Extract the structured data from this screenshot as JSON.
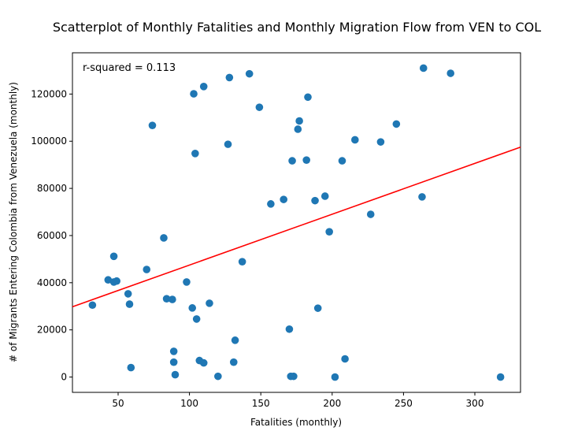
{
  "chart_data": {
    "type": "scatter",
    "title": "Scatterplot of Monthly Fatalities and Monthly Migration Flow from VEN to COL",
    "xlabel": "Fatalities (monthly)",
    "ylabel": "# of Migrants Entering Colombia from Venezuela (monthly)",
    "xlim": [
      18,
      332
    ],
    "ylim": [
      -6500,
      137500
    ],
    "xticks": [
      50,
      100,
      150,
      200,
      250,
      300
    ],
    "yticks": [
      0,
      20000,
      40000,
      60000,
      80000,
      100000,
      120000
    ],
    "grid": false,
    "annotation": "r-squared = 0.113",
    "marker_color": "#1f77b4",
    "fit_line_color": "#ff0000",
    "fit_line": {
      "x": [
        18,
        332
      ],
      "y": [
        29800,
        97500
      ]
    },
    "points": [
      {
        "x": 32,
        "y": 30500
      },
      {
        "x": 43,
        "y": 41200
      },
      {
        "x": 47,
        "y": 40300
      },
      {
        "x": 47,
        "y": 51200
      },
      {
        "x": 49,
        "y": 40700
      },
      {
        "x": 57,
        "y": 35300
      },
      {
        "x": 58,
        "y": 30900
      },
      {
        "x": 59,
        "y": 4000
      },
      {
        "x": 70,
        "y": 45600
      },
      {
        "x": 74,
        "y": 106700
      },
      {
        "x": 82,
        "y": 59000
      },
      {
        "x": 84,
        "y": 33200
      },
      {
        "x": 88,
        "y": 32900
      },
      {
        "x": 89,
        "y": 10900
      },
      {
        "x": 89,
        "y": 6300
      },
      {
        "x": 90,
        "y": 1000
      },
      {
        "x": 98,
        "y": 40300
      },
      {
        "x": 102,
        "y": 29300
      },
      {
        "x": 103,
        "y": 120100
      },
      {
        "x": 104,
        "y": 94800
      },
      {
        "x": 105,
        "y": 24600
      },
      {
        "x": 107,
        "y": 7000
      },
      {
        "x": 110,
        "y": 123200
      },
      {
        "x": 110,
        "y": 6000
      },
      {
        "x": 114,
        "y": 31300
      },
      {
        "x": 120,
        "y": 300
      },
      {
        "x": 127,
        "y": 98700
      },
      {
        "x": 128,
        "y": 127000
      },
      {
        "x": 131,
        "y": 6300
      },
      {
        "x": 132,
        "y": 15600
      },
      {
        "x": 137,
        "y": 48900
      },
      {
        "x": 142,
        "y": 128600
      },
      {
        "x": 149,
        "y": 114400
      },
      {
        "x": 157,
        "y": 73400
      },
      {
        "x": 166,
        "y": 75300
      },
      {
        "x": 170,
        "y": 20300
      },
      {
        "x": 171,
        "y": 300
      },
      {
        "x": 172,
        "y": 91700
      },
      {
        "x": 173,
        "y": 300
      },
      {
        "x": 176,
        "y": 105100
      },
      {
        "x": 177,
        "y": 108600
      },
      {
        "x": 182,
        "y": 92000
      },
      {
        "x": 183,
        "y": 118700
      },
      {
        "x": 188,
        "y": 74800
      },
      {
        "x": 190,
        "y": 29200
      },
      {
        "x": 195,
        "y": 76700
      },
      {
        "x": 198,
        "y": 61600
      },
      {
        "x": 202,
        "y": 0
      },
      {
        "x": 207,
        "y": 91700
      },
      {
        "x": 209,
        "y": 7700
      },
      {
        "x": 216,
        "y": 100600
      },
      {
        "x": 227,
        "y": 69000
      },
      {
        "x": 234,
        "y": 99700
      },
      {
        "x": 245,
        "y": 107300
      },
      {
        "x": 263,
        "y": 76400
      },
      {
        "x": 264,
        "y": 131000
      },
      {
        "x": 283,
        "y": 128800
      },
      {
        "x": 318,
        "y": 0
      }
    ]
  }
}
